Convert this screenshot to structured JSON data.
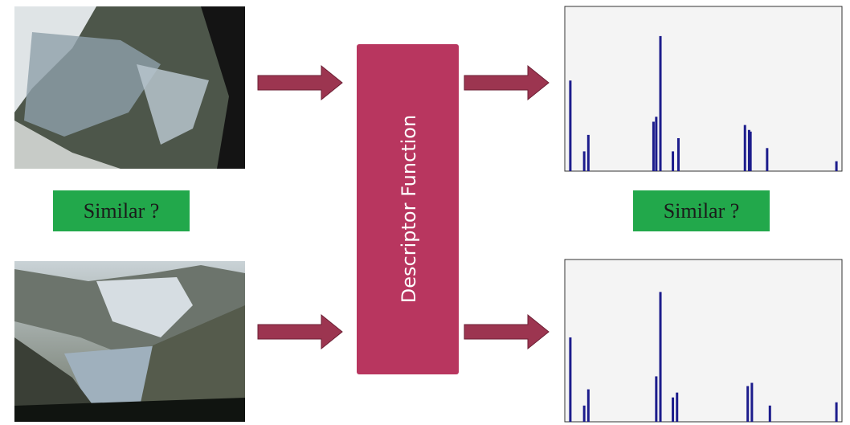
{
  "labels": {
    "similar_left": "Similar ?",
    "similar_right": "Similar ?",
    "descriptor": "Descriptor Function"
  },
  "histograms": [
    {
      "x": [
        2,
        7,
        8.5,
        32,
        33,
        34.5,
        39,
        41,
        65,
        66.5,
        67,
        73,
        98
      ],
      "values": [
        55,
        12,
        22,
        30,
        33,
        82,
        12,
        20,
        28,
        25,
        24,
        14,
        6
      ]
    },
    {
      "x": [
        2,
        7,
        8.5,
        33,
        34.5,
        39,
        40.5,
        66,
        67.5,
        74,
        98
      ],
      "values": [
        52,
        10,
        20,
        28,
        80,
        15,
        18,
        22,
        24,
        10,
        12
      ]
    }
  ]
}
